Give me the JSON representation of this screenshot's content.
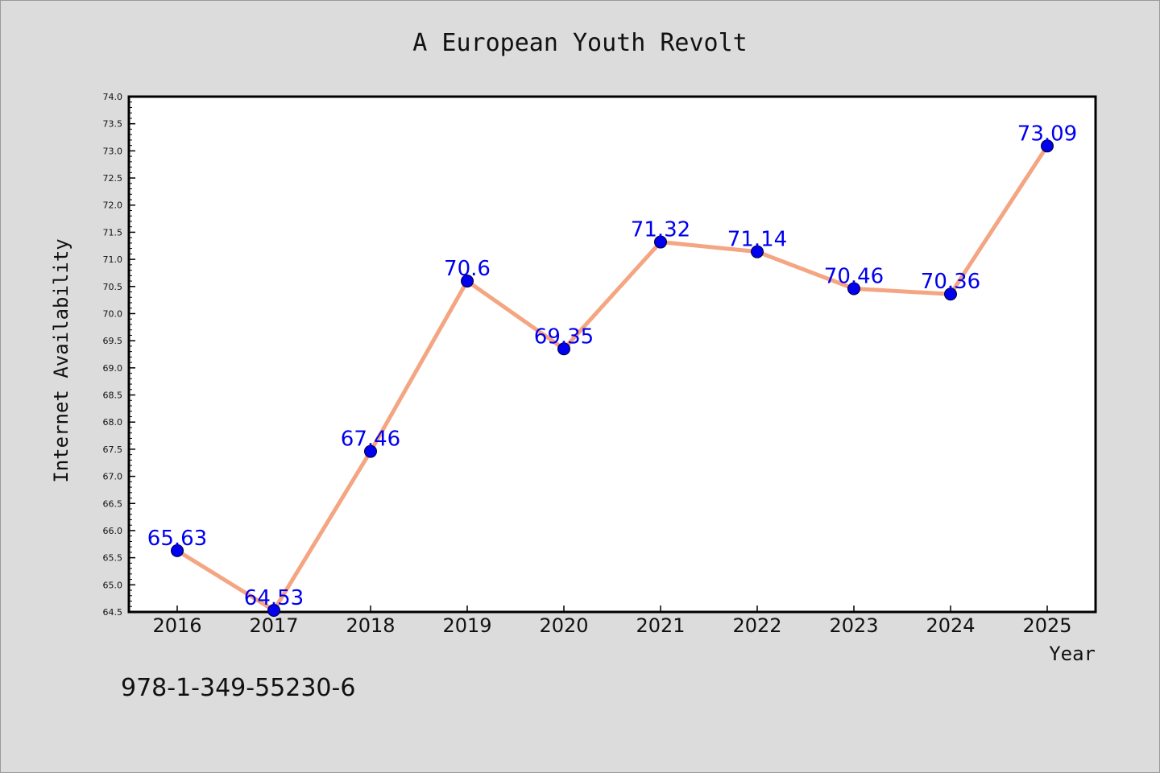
{
  "chart_data": {
    "type": "line",
    "title": "A European Youth Revolt",
    "xlabel": "Year",
    "ylabel": "Internet Availability",
    "categories": [
      "2016",
      "2017",
      "2018",
      "2019",
      "2020",
      "2021",
      "2022",
      "2023",
      "2024",
      "2025"
    ],
    "series": [
      {
        "values": [
          65.63,
          64.53,
          67.46,
          70.6,
          69.35,
          71.32,
          71.14,
          70.46,
          70.36,
          73.09
        ],
        "data_labels": [
          "65.63",
          "64.53",
          "67.46",
          "70.6",
          "69.35",
          "71.32",
          "71.14",
          "70.46",
          "70.36",
          "73.09"
        ],
        "line_color": "#f4a582",
        "marker_color": "#0000ee"
      }
    ],
    "ylim": [
      64.5,
      74.0
    ],
    "yticks": [
      "64.5",
      "65.0",
      "65.5",
      "66.0",
      "66.5",
      "67.0",
      "67.5",
      "68.0",
      "68.5",
      "69.0",
      "69.5",
      "70.0",
      "70.5",
      "71.0",
      "71.5",
      "72.0",
      "72.5",
      "73.0",
      "73.5",
      "74.0"
    ],
    "grid": false,
    "legend": "none"
  },
  "footer_text": "978-1-349-55230-6"
}
